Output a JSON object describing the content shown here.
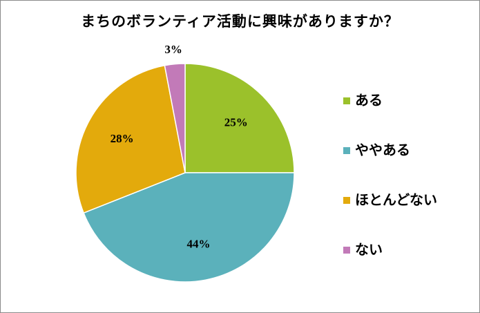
{
  "chart_data": {
    "type": "pie",
    "title": "まちのボランティア活動に興味がありますか？",
    "categories": [
      "ある",
      "ややある",
      "ほとんどない",
      "ない"
    ],
    "values": [
      25,
      44,
      28,
      3
    ],
    "labels": [
      "25%",
      "44%",
      "28%",
      "3%"
    ],
    "colors": [
      "#9bc12b",
      "#5bb1bb",
      "#e3aa0c",
      "#c27ab8"
    ],
    "legend_position": "right"
  }
}
